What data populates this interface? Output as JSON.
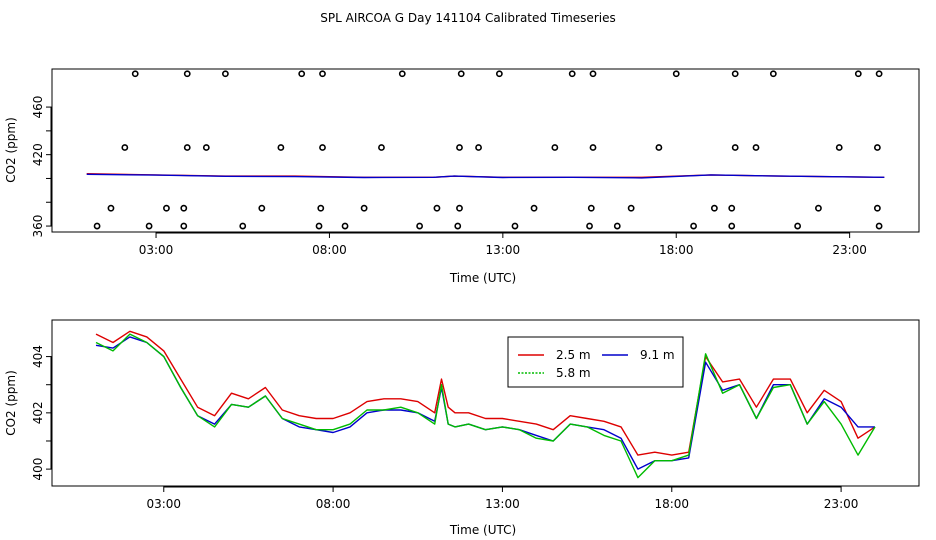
{
  "figure_title": "SPL AIRCOA G  Day 141104  Calibrated Timeseries",
  "colors": {
    "s1": "#dd0000",
    "s2": "#00bb00",
    "s3": "#0000cc",
    "axis": "#000000",
    "points": "#000000"
  },
  "chart_data": [
    {
      "type": "line",
      "panel": "top",
      "xlabel": "Time (UTC)",
      "ylabel": "CO2 (ppm)",
      "xlim": [
        0,
        25
      ],
      "ylim": [
        355,
        492
      ],
      "x_ticks": [
        3,
        8,
        13,
        18,
        23
      ],
      "x_tick_labels": [
        "03:00",
        "08:00",
        "13:00",
        "18:00",
        "23:00"
      ],
      "y_ticks": [
        360,
        380,
        400,
        420,
        440,
        460
      ],
      "y_tick_labels": [
        "360",
        "",
        "",
        "420",
        "",
        "460"
      ],
      "series": [
        {
          "name": "2.5 m",
          "color": "#dd0000",
          "x": [
            1,
            3,
            5,
            7,
            9,
            11,
            11.6,
            13,
            15,
            17,
            19,
            21,
            24
          ],
          "y": [
            404,
            403,
            402,
            402,
            401,
            401,
            402,
            401,
            401,
            401,
            403,
            402,
            401
          ]
        },
        {
          "name": "9.1 m",
          "color": "#0000cc",
          "x": [
            1,
            3,
            5,
            7,
            9,
            11,
            11.6,
            13,
            15,
            17,
            19,
            21,
            24
          ],
          "y": [
            403.5,
            402.8,
            401.8,
            401.6,
            400.8,
            401,
            402,
            400.8,
            401,
            400.5,
            403,
            402,
            401
          ]
        }
      ],
      "markers": {
        "symbol": "open-circle",
        "x": [
          1.3,
          1.7,
          2.1,
          2.4,
          2.8,
          3.3,
          3.8,
          3.8,
          3.9,
          3.9,
          4.45,
          5.0,
          5.5,
          6.05,
          6.6,
          7.2,
          7.7,
          7.75,
          7.8,
          7.8,
          8.45,
          9.0,
          9.5,
          10.1,
          10.6,
          11.1,
          11.7,
          11.75,
          11.75,
          11.8,
          12.3,
          12.9,
          13.35,
          13.9,
          14.5,
          15.0,
          15.5,
          15.55,
          15.6,
          15.6,
          16.3,
          16.7,
          17.5,
          18.0,
          18.5,
          19.1,
          19.6,
          19.6,
          19.7,
          19.7,
          20.3,
          20.8,
          21.5,
          22.1,
          22.7,
          23.25,
          23.8,
          23.8,
          23.85,
          23.85
        ],
        "y": [
          360,
          375,
          426,
          488,
          360,
          375,
          360,
          375,
          426,
          488,
          426,
          488,
          360,
          375,
          426,
          488,
          360,
          375,
          426,
          488,
          360,
          375,
          426,
          488,
          360,
          375,
          360,
          375,
          426,
          488,
          426,
          488,
          360,
          375,
          426,
          488,
          360,
          375,
          426,
          488,
          360,
          375,
          426,
          488,
          360,
          375,
          360,
          375,
          426,
          488,
          426,
          488,
          360,
          375,
          426,
          488,
          375,
          426,
          360,
          488
        ]
      }
    },
    {
      "type": "line",
      "panel": "bottom",
      "xlabel": "Time (UTC)",
      "ylabel": "CO2 (ppm)",
      "xlim": [
        -0.3,
        25.3
      ],
      "ylim": [
        399.4,
        405.3
      ],
      "x_ticks": [
        3,
        8,
        13,
        18,
        23
      ],
      "x_tick_labels": [
        "03:00",
        "08:00",
        "13:00",
        "18:00",
        "23:00"
      ],
      "y_ticks": [
        400,
        401,
        402,
        403,
        404
      ],
      "y_tick_labels": [
        "400",
        "",
        "402",
        "",
        "404"
      ],
      "legend": {
        "position": "top-center",
        "labels": [
          "2.5 m",
          "9.1 m",
          "5.8 m"
        ]
      },
      "series": [
        {
          "name": "2.5 m",
          "color": "#dd0000",
          "x": [
            1,
            1.5,
            2,
            2.5,
            3,
            3.5,
            4,
            4.5,
            5,
            5.5,
            6,
            6.5,
            7,
            7.5,
            8,
            8.5,
            9,
            9.5,
            10,
            10.5,
            11,
            11.2,
            11.4,
            11.6,
            12,
            12.5,
            13,
            13.5,
            14,
            14.5,
            15,
            15.5,
            16,
            16.5,
            17,
            17.5,
            18,
            18.5,
            19,
            19.5,
            20,
            20.5,
            21,
            21.5,
            22,
            22.5,
            23,
            23.5,
            24
          ],
          "y": [
            404.8,
            404.5,
            404.9,
            404.7,
            404.2,
            403.2,
            402.2,
            401.9,
            402.7,
            402.5,
            402.9,
            402.1,
            401.9,
            401.8,
            401.8,
            402.0,
            402.4,
            402.5,
            402.5,
            402.4,
            402.0,
            403.2,
            402.2,
            402.0,
            402.0,
            401.8,
            401.8,
            401.7,
            401.6,
            401.4,
            401.9,
            401.8,
            401.7,
            401.5,
            400.5,
            400.6,
            400.5,
            400.6,
            404.0,
            403.1,
            403.2,
            402.2,
            403.2,
            403.2,
            402.0,
            402.8,
            402.4,
            401.1,
            401.5
          ]
        },
        {
          "name": "9.1 m",
          "color": "#0000cc",
          "x": [
            1,
            1.5,
            2,
            2.5,
            3,
            3.5,
            4,
            4.5,
            5,
            5.5,
            6,
            6.5,
            7,
            7.5,
            8,
            8.5,
            9,
            9.5,
            10,
            10.5,
            11,
            11.2,
            11.4,
            11.6,
            12,
            12.5,
            13,
            13.5,
            14,
            14.5,
            15,
            15.5,
            16,
            16.5,
            17,
            17.5,
            18,
            18.5,
            19,
            19.5,
            20,
            20.5,
            21,
            21.5,
            22,
            22.5,
            23,
            23.5,
            24
          ],
          "y": [
            404.4,
            404.3,
            404.7,
            404.5,
            404.0,
            402.9,
            401.9,
            401.6,
            402.3,
            402.2,
            402.6,
            401.8,
            401.5,
            401.4,
            401.3,
            401.5,
            402.0,
            402.1,
            402.1,
            402.0,
            401.7,
            402.9,
            401.6,
            401.5,
            401.6,
            401.4,
            401.5,
            401.4,
            401.2,
            401.0,
            401.6,
            401.5,
            401.4,
            401.1,
            400.0,
            400.3,
            400.3,
            400.4,
            403.8,
            402.8,
            403.0,
            401.8,
            403.0,
            403.0,
            401.6,
            402.5,
            402.2,
            401.5,
            401.5
          ]
        },
        {
          "name": "5.8 m",
          "color": "#00bb00",
          "x": [
            1,
            1.5,
            2,
            2.5,
            3,
            3.5,
            4,
            4.5,
            5,
            5.5,
            6,
            6.5,
            7,
            7.5,
            8,
            8.5,
            9,
            9.5,
            10,
            10.5,
            11,
            11.2,
            11.4,
            11.6,
            12,
            12.5,
            13,
            13.5,
            14,
            14.5,
            15,
            15.5,
            16,
            16.5,
            17,
            17.5,
            18,
            18.5,
            19,
            19.5,
            20,
            20.5,
            21,
            21.5,
            22,
            22.5,
            23,
            23.5,
            24
          ],
          "y": [
            404.5,
            404.2,
            404.8,
            404.5,
            404.0,
            402.9,
            401.9,
            401.5,
            402.3,
            402.2,
            402.6,
            401.8,
            401.6,
            401.4,
            401.4,
            401.6,
            402.1,
            402.1,
            402.2,
            402.0,
            401.6,
            403.0,
            401.6,
            401.5,
            401.6,
            401.4,
            401.5,
            401.4,
            401.1,
            401.0,
            401.6,
            401.5,
            401.2,
            401.0,
            399.7,
            400.3,
            400.3,
            400.5,
            404.1,
            402.7,
            403.0,
            401.8,
            402.9,
            403.0,
            401.6,
            402.4,
            401.6,
            400.5,
            401.5
          ]
        }
      ]
    }
  ]
}
